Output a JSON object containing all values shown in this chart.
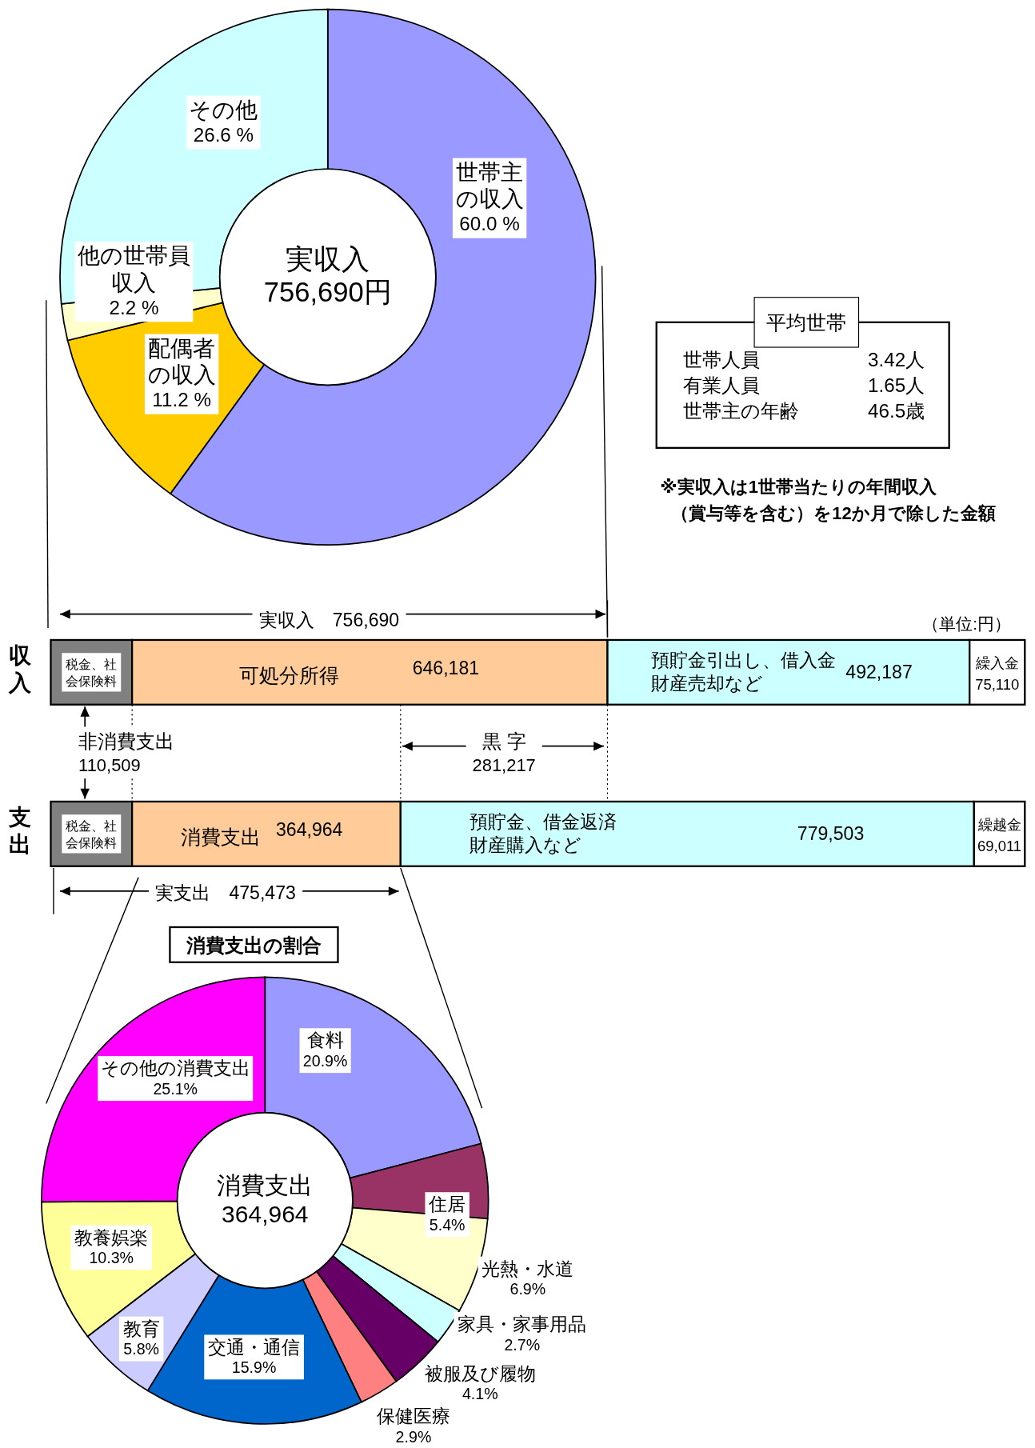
{
  "chart_data": [
    {
      "type": "donut",
      "categories": [
        "世帯主の収入",
        "配偶者の収入",
        "他の世帯員収入",
        "その他"
      ],
      "values": [
        60.0,
        11.2,
        2.2,
        26.6
      ],
      "colors": [
        "#9999ff",
        "#ffcc00",
        "#ffffcc",
        "#ccffff"
      ],
      "value_labels": [
        "60.0 %",
        "11.2 %",
        "2.2 %",
        "26.6 %"
      ],
      "annotations": [
        "実収入\n756,690円"
      ]
    },
    {
      "type": "other",
      "title": "平均世帯",
      "annotations": [
        "世帯人員",
        "3.42人",
        "有業人員",
        "1.65人",
        "世帯主の年齢",
        "46.5歳",
        "※実収入は1世帯当たりの年間収入（賞与等を含む）を12か月で除した金額"
      ]
    },
    {
      "type": "bar",
      "orientation": "horizontal",
      "stacked": true,
      "categories": [
        "収入",
        "支出"
      ],
      "series": [
        {
          "color": "#808080",
          "values": [
            110509,
            110509
          ],
          "value_labels": [
            null,
            null
          ]
        },
        {
          "color": "#ffcc99",
          "values": [
            646181,
            364964
          ],
          "value_labels": [
            "646,181",
            "364,964"
          ]
        },
        {
          "color": "#ccffff",
          "values": [
            492187,
            779503
          ],
          "value_labels": [
            "492,187",
            "779,503"
          ]
        },
        {
          "color": "#ffffff",
          "values": [
            75110,
            69011
          ],
          "value_labels": [
            "75,110",
            "69,011"
          ]
        }
      ],
      "ref_lines": [
        {
          "axis": "x",
          "value": 110509,
          "label": "非消費支出\n110,509",
          "line_style": "dotted"
        },
        {
          "axis": "x",
          "value": 475473,
          "line_style": "dotted"
        },
        {
          "axis": "x",
          "value": 756690,
          "line_style": "dotted"
        }
      ],
      "annotations": [
        "実支出　475,473",
        "実収入　756,690",
        "（単位:円）",
        "黒 字\n281,217",
        "税金、社会保険料",
        "可処分所得",
        "預貯金引出し、借入金財産売却など",
        "繰入金",
        "税金、社会保険料",
        "消費支出",
        "預貯金、借金返済財産購入など",
        "繰越金"
      ]
    },
    {
      "type": "donut",
      "title": "消費支出の割合",
      "categories": [
        "食料",
        "住居",
        "光熱・水道",
        "家具・家事用品",
        "被服及び履物",
        "保健医療",
        "交通・通信",
        "教育",
        "教養娯楽",
        "その他の消費支出"
      ],
      "values": [
        20.9,
        5.4,
        6.9,
        2.7,
        4.1,
        2.9,
        15.9,
        5.8,
        10.3,
        25.1
      ],
      "colors": [
        "#9999ff",
        "#993366",
        "#ffffcc",
        "#ccffff",
        "#660066",
        "#ff8080",
        "#0066cc",
        "#ccccff",
        "#ffff99",
        "#ff00ff"
      ],
      "value_labels": [
        "20.9%",
        "5.4%",
        "6.9%",
        "2.7%",
        "4.1%",
        "2.9%",
        "15.9%",
        "5.8%",
        "10.3%",
        "25.1%"
      ],
      "annotations": [
        "消費支出\n364,964"
      ]
    }
  ]
}
